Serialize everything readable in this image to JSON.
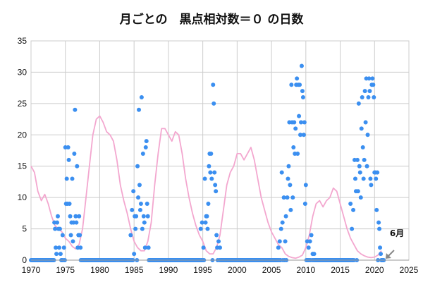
{
  "chart_data": {
    "type": "scatter",
    "title": "月ごとの　黒点相対数＝０ の日数",
    "xlabel": "",
    "ylabel": "",
    "xlim": [
      1970,
      2025
    ],
    "ylim": [
      0,
      35
    ],
    "x_ticks": [
      1970,
      1975,
      1980,
      1985,
      1990,
      1995,
      2000,
      2005,
      2010,
      2015,
      2020,
      2025
    ],
    "y_ticks": [
      0,
      5,
      10,
      15,
      20,
      25,
      30,
      35
    ],
    "grid": true,
    "legend": "none",
    "colors": {
      "points": "#3b8ff0",
      "line": "#f3a7cf",
      "grid": "#cccccc",
      "arrow": "#888888"
    },
    "annotation": {
      "text": "6月",
      "x": 2021.4,
      "y": 0
    },
    "series": [
      {
        "type": "scatter",
        "points": [
          [
            1973.4,
            6
          ],
          [
            1973.5,
            5
          ],
          [
            1973.6,
            2
          ],
          [
            1973.7,
            1
          ],
          [
            1973.8,
            6
          ],
          [
            1973.9,
            7
          ],
          [
            1974.0,
            5
          ],
          [
            1974.1,
            2
          ],
          [
            1974.2,
            5
          ],
          [
            1974.3,
            1
          ],
          [
            1974.6,
            4
          ],
          [
            1974.8,
            2
          ],
          [
            1975.0,
            18
          ],
          [
            1975.1,
            9
          ],
          [
            1975.2,
            13
          ],
          [
            1975.3,
            9
          ],
          [
            1975.4,
            18
          ],
          [
            1975.5,
            16
          ],
          [
            1975.6,
            9
          ],
          [
            1975.7,
            7
          ],
          [
            1975.8,
            4
          ],
          [
            1975.9,
            6
          ],
          [
            1976.0,
            13
          ],
          [
            1976.1,
            3
          ],
          [
            1976.2,
            6
          ],
          [
            1976.3,
            17
          ],
          [
            1976.4,
            24
          ],
          [
            1976.5,
            7
          ],
          [
            1976.6,
            6
          ],
          [
            1976.7,
            15
          ],
          [
            1976.8,
            2
          ],
          [
            1976.9,
            4
          ],
          [
            1977.0,
            7
          ],
          [
            1977.1,
            4
          ],
          [
            1977.2,
            2
          ],
          [
            1984.5,
            4
          ],
          [
            1984.7,
            8
          ],
          [
            1984.9,
            11
          ],
          [
            1985.0,
            1
          ],
          [
            1985.1,
            7
          ],
          [
            1985.2,
            5
          ],
          [
            1985.3,
            7
          ],
          [
            1985.5,
            15
          ],
          [
            1985.6,
            10
          ],
          [
            1985.7,
            24
          ],
          [
            1985.8,
            12
          ],
          [
            1985.9,
            8
          ],
          [
            1986.0,
            9
          ],
          [
            1986.1,
            26
          ],
          [
            1986.2,
            5
          ],
          [
            1986.3,
            17
          ],
          [
            1986.4,
            7
          ],
          [
            1986.5,
            6
          ],
          [
            1986.6,
            2
          ],
          [
            1986.7,
            18
          ],
          [
            1986.8,
            19
          ],
          [
            1986.9,
            9
          ],
          [
            1987.0,
            7
          ],
          [
            1987.1,
            2
          ],
          [
            1994.7,
            5
          ],
          [
            1994.9,
            6
          ],
          [
            1995.1,
            2
          ],
          [
            1995.3,
            13
          ],
          [
            1995.4,
            6
          ],
          [
            1995.5,
            7
          ],
          [
            1995.6,
            7
          ],
          [
            1995.7,
            5
          ],
          [
            1995.8,
            9
          ],
          [
            1995.9,
            15
          ],
          [
            1996.0,
            17
          ],
          [
            1996.1,
            14
          ],
          [
            1996.2,
            17
          ],
          [
            1996.3,
            13
          ],
          [
            1996.5,
            28
          ],
          [
            1996.6,
            25
          ],
          [
            1996.7,
            14
          ],
          [
            1996.8,
            12
          ],
          [
            1996.9,
            11
          ],
          [
            1997.0,
            4
          ],
          [
            1997.1,
            2
          ],
          [
            1997.3,
            3
          ],
          [
            1997.5,
            2
          ],
          [
            2006.0,
            2
          ],
          [
            2006.2,
            3
          ],
          [
            2006.4,
            5
          ],
          [
            2006.5,
            14
          ],
          [
            2006.6,
            6
          ],
          [
            2006.8,
            10
          ],
          [
            2007.0,
            3
          ],
          [
            2007.1,
            7
          ],
          [
            2007.3,
            10
          ],
          [
            2007.4,
            13
          ],
          [
            2007.5,
            15
          ],
          [
            2007.6,
            22
          ],
          [
            2007.7,
            12
          ],
          [
            2007.8,
            8
          ],
          [
            2007.9,
            28
          ],
          [
            2008.0,
            22
          ],
          [
            2008.1,
            10
          ],
          [
            2008.2,
            18
          ],
          [
            2008.3,
            22
          ],
          [
            2008.4,
            17
          ],
          [
            2008.5,
            21
          ],
          [
            2008.6,
            28
          ],
          [
            2008.7,
            29
          ],
          [
            2008.8,
            17
          ],
          [
            2008.9,
            28
          ],
          [
            2009.0,
            23
          ],
          [
            2009.1,
            28
          ],
          [
            2009.2,
            20
          ],
          [
            2009.3,
            22
          ],
          [
            2009.4,
            31
          ],
          [
            2009.5,
            27
          ],
          [
            2009.6,
            26
          ],
          [
            2009.7,
            20
          ],
          [
            2009.8,
            22
          ],
          [
            2009.9,
            9
          ],
          [
            2010.0,
            12
          ],
          [
            2010.2,
            3
          ],
          [
            2010.4,
            2
          ],
          [
            2010.6,
            3
          ],
          [
            2010.8,
            4
          ],
          [
            2011.0,
            1
          ],
          [
            2011.2,
            1
          ],
          [
            2016.5,
            9
          ],
          [
            2016.7,
            5
          ],
          [
            2016.9,
            8
          ],
          [
            2017.1,
            16
          ],
          [
            2017.2,
            13
          ],
          [
            2017.3,
            11
          ],
          [
            2017.5,
            16
          ],
          [
            2017.6,
            11
          ],
          [
            2017.7,
            25
          ],
          [
            2017.8,
            15
          ],
          [
            2017.9,
            14
          ],
          [
            2018.0,
            10
          ],
          [
            2018.1,
            21
          ],
          [
            2018.2,
            26
          ],
          [
            2018.3,
            18
          ],
          [
            2018.4,
            13
          ],
          [
            2018.5,
            16
          ],
          [
            2018.6,
            27
          ],
          [
            2018.7,
            22
          ],
          [
            2018.8,
            29
          ],
          [
            2018.9,
            15
          ],
          [
            2019.0,
            20
          ],
          [
            2019.1,
            26
          ],
          [
            2019.2,
            29
          ],
          [
            2019.3,
            27
          ],
          [
            2019.4,
            13
          ],
          [
            2019.5,
            12
          ],
          [
            2019.6,
            28
          ],
          [
            2019.7,
            29
          ],
          [
            2019.8,
            28
          ],
          [
            2019.9,
            26
          ],
          [
            2020.0,
            14
          ],
          [
            2020.1,
            14
          ],
          [
            2020.2,
            13
          ],
          [
            2020.3,
            8
          ],
          [
            2020.4,
            14
          ],
          [
            2020.6,
            6
          ],
          [
            2020.7,
            5
          ],
          [
            2020.8,
            2
          ],
          [
            2020.9,
            1
          ]
        ]
      },
      {
        "type": "line",
        "points": [
          [
            1970.0,
            15
          ],
          [
            1970.5,
            14
          ],
          [
            1971.0,
            11
          ],
          [
            1971.5,
            9.5
          ],
          [
            1972.0,
            10.5
          ],
          [
            1972.5,
            9
          ],
          [
            1973.0,
            7
          ],
          [
            1973.5,
            5.5
          ],
          [
            1974.0,
            5
          ],
          [
            1974.5,
            4.5
          ],
          [
            1975.0,
            3.5
          ],
          [
            1975.5,
            3
          ],
          [
            1976.0,
            2.2
          ],
          [
            1976.5,
            1.8
          ],
          [
            1977.0,
            2.5
          ],
          [
            1977.5,
            5
          ],
          [
            1978.0,
            10
          ],
          [
            1978.5,
            15
          ],
          [
            1979.0,
            20
          ],
          [
            1979.5,
            22.5
          ],
          [
            1980.0,
            23
          ],
          [
            1980.5,
            22
          ],
          [
            1981.0,
            20.5
          ],
          [
            1981.5,
            20
          ],
          [
            1982.0,
            19
          ],
          [
            1982.5,
            16
          ],
          [
            1983.0,
            12
          ],
          [
            1983.5,
            9.5
          ],
          [
            1984.0,
            7.5
          ],
          [
            1984.5,
            5
          ],
          [
            1985.0,
            3
          ],
          [
            1985.5,
            2
          ],
          [
            1986.0,
            1.5
          ],
          [
            1986.5,
            1.5
          ],
          [
            1987.0,
            3
          ],
          [
            1987.5,
            6
          ],
          [
            1988.0,
            12
          ],
          [
            1988.5,
            17
          ],
          [
            1989.0,
            21
          ],
          [
            1989.5,
            21
          ],
          [
            1990.0,
            20
          ],
          [
            1990.5,
            19
          ],
          [
            1991.0,
            20.5
          ],
          [
            1991.5,
            20
          ],
          [
            1992.0,
            17
          ],
          [
            1992.5,
            13
          ],
          [
            1993.0,
            10
          ],
          [
            1993.5,
            7.5
          ],
          [
            1994.0,
            5.5
          ],
          [
            1994.5,
            4
          ],
          [
            1995.0,
            3
          ],
          [
            1995.5,
            1.5
          ],
          [
            1996.0,
            1
          ],
          [
            1996.5,
            1
          ],
          [
            1997.0,
            2
          ],
          [
            1997.5,
            4
          ],
          [
            1998.0,
            8
          ],
          [
            1998.5,
            12
          ],
          [
            1999.0,
            14
          ],
          [
            1999.5,
            15
          ],
          [
            2000.0,
            17
          ],
          [
            2000.5,
            17
          ],
          [
            2001.0,
            16
          ],
          [
            2001.5,
            17
          ],
          [
            2002.0,
            18
          ],
          [
            2002.5,
            16
          ],
          [
            2003.0,
            13
          ],
          [
            2003.5,
            10
          ],
          [
            2004.0,
            8
          ],
          [
            2004.5,
            6
          ],
          [
            2005.0,
            4.5
          ],
          [
            2005.5,
            3.5
          ],
          [
            2006.0,
            2.5
          ],
          [
            2006.5,
            2
          ],
          [
            2007.0,
            1
          ],
          [
            2007.5,
            0.6
          ],
          [
            2008.0,
            0.4
          ],
          [
            2008.5,
            0.3
          ],
          [
            2009.0,
            0.5
          ],
          [
            2009.5,
            0.8
          ],
          [
            2010.0,
            2
          ],
          [
            2010.5,
            4
          ],
          [
            2011.0,
            7
          ],
          [
            2011.5,
            9
          ],
          [
            2012.0,
            9.5
          ],
          [
            2012.5,
            8.5
          ],
          [
            2013.0,
            9.5
          ],
          [
            2013.5,
            10
          ],
          [
            2014.0,
            11.5
          ],
          [
            2014.5,
            11
          ],
          [
            2015.0,
            9
          ],
          [
            2015.5,
            7
          ],
          [
            2016.0,
            5
          ],
          [
            2016.5,
            3.5
          ],
          [
            2017.0,
            2.5
          ],
          [
            2017.5,
            1.5
          ],
          [
            2018.0,
            1
          ],
          [
            2018.5,
            0.7
          ],
          [
            2019.0,
            0.5
          ],
          [
            2019.5,
            0.4
          ],
          [
            2020.0,
            0.5
          ],
          [
            2020.5,
            0.8
          ],
          [
            2021.0,
            1.5
          ]
        ]
      }
    ]
  }
}
